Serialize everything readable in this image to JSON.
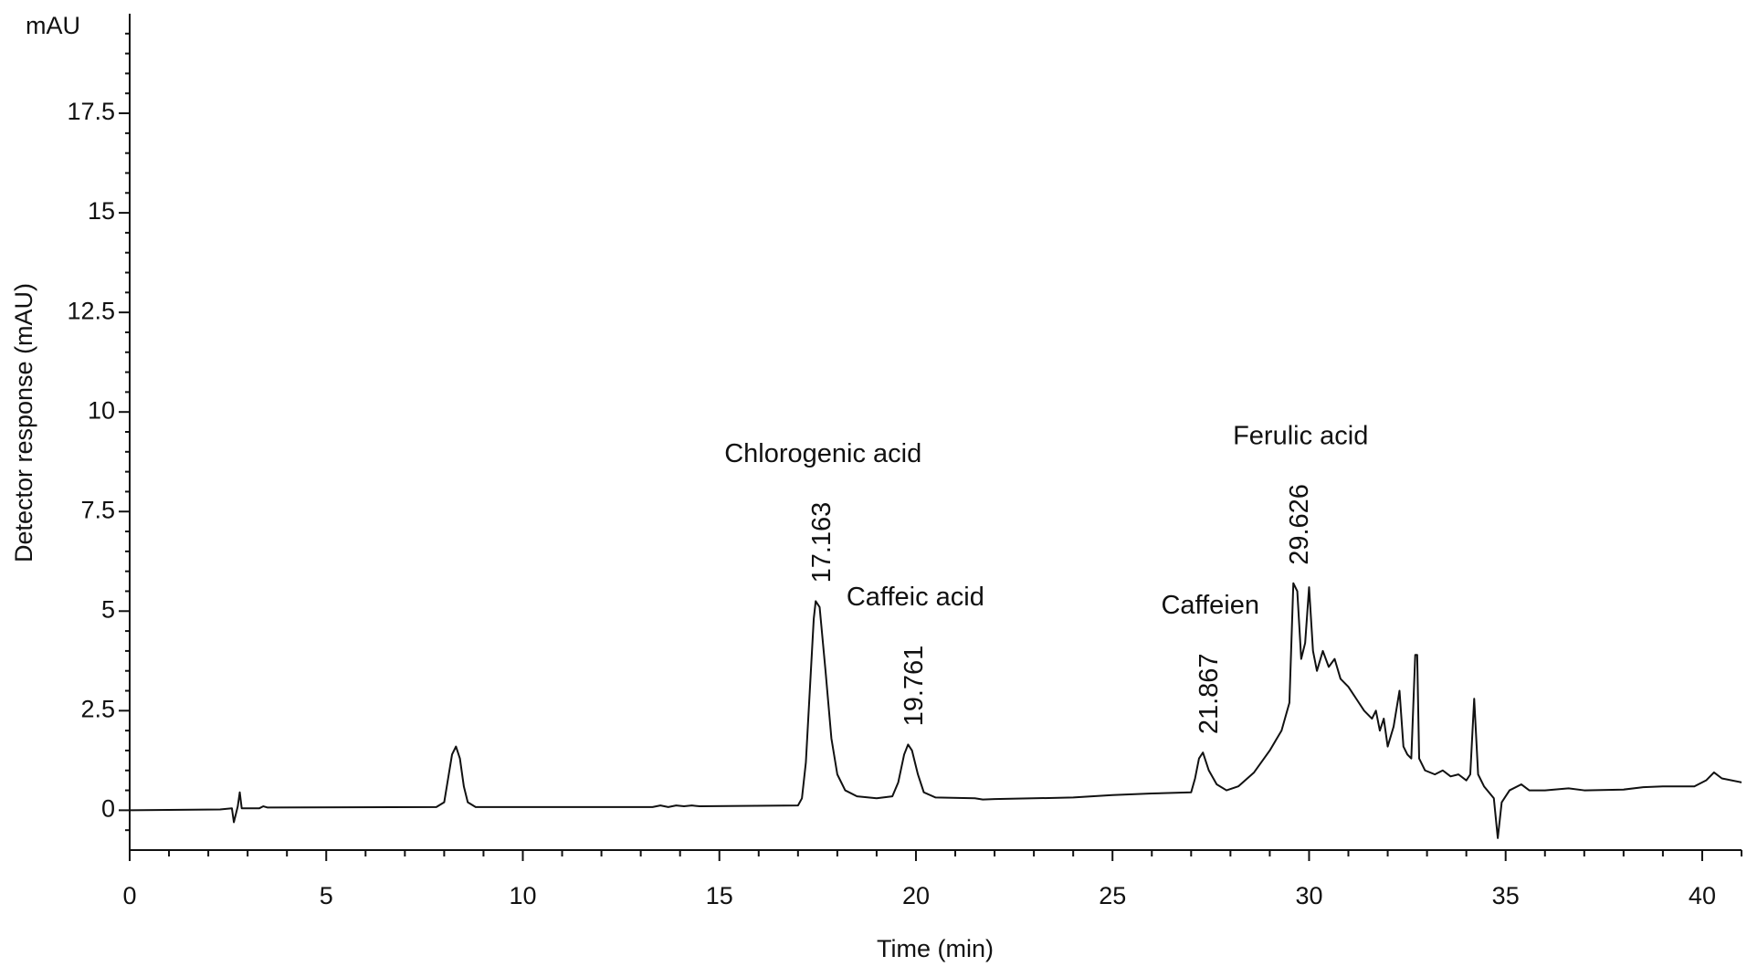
{
  "chart_data": {
    "type": "line",
    "y_unit": "mAU",
    "x_label": "Time (min)",
    "y_label": "Detector response (mAU)",
    "color": "#111111",
    "xlim": [
      0,
      41
    ],
    "ylim": [
      -1,
      20
    ],
    "xticks": [
      0,
      5,
      10,
      15,
      20,
      25,
      30,
      35,
      40
    ],
    "yticks": [
      0,
      2.5,
      5,
      7.5,
      10,
      12.5,
      15,
      17.5
    ],
    "xticks_minor": [
      1,
      2,
      3,
      4,
      6,
      7,
      8,
      9,
      11,
      12,
      13,
      14,
      16,
      17,
      18,
      19,
      21,
      22,
      23,
      24,
      26,
      27,
      28,
      29,
      31,
      32,
      33,
      34,
      36,
      37,
      38,
      39,
      41
    ],
    "yticks_minor": [
      -0.5,
      0.5,
      1,
      1.5,
      2,
      3,
      3.5,
      4,
      4.5,
      5.5,
      6,
      6.5,
      7,
      8,
      8.5,
      9,
      9.5,
      10.5,
      11,
      11.5,
      12,
      13,
      13.5,
      14,
      14.5,
      15.5,
      16,
      16.5,
      17,
      18,
      18.5,
      19,
      19.5
    ],
    "x": [
      0,
      2.3,
      2.6,
      2.65,
      2.75,
      2.8,
      2.85,
      3.0,
      3.3,
      3.4,
      3.5,
      7.8,
      8.0,
      8.1,
      8.2,
      8.3,
      8.4,
      8.5,
      8.6,
      8.8,
      13.3,
      13.5,
      13.7,
      13.9,
      14.1,
      14.3,
      14.5,
      17.0,
      17.1,
      17.2,
      17.3,
      17.4,
      17.45,
      17.55,
      17.7,
      17.85,
      18.0,
      18.2,
      18.5,
      19.0,
      19.4,
      19.55,
      19.7,
      19.8,
      19.9,
      20.05,
      20.2,
      20.5,
      21.5,
      21.7,
      22,
      24,
      25,
      26,
      27,
      27.1,
      27.2,
      27.3,
      27.45,
      27.65,
      27.9,
      28.2,
      28.6,
      29.0,
      29.3,
      29.5,
      29.6,
      29.7,
      29.8,
      29.9,
      30.0,
      30.1,
      30.2,
      30.35,
      30.5,
      30.65,
      30.8,
      31.0,
      31.2,
      31.4,
      31.6,
      31.7,
      31.8,
      31.9,
      32.0,
      32.15,
      32.3,
      32.4,
      32.5,
      32.6,
      32.7,
      32.75,
      32.8,
      32.95,
      33.2,
      33.4,
      33.6,
      33.8,
      34.0,
      34.1,
      34.2,
      34.3,
      34.45,
      34.7,
      34.8,
      34.9,
      35.1,
      35.4,
      35.6,
      36,
      36.6,
      37,
      38,
      38.5,
      39,
      39.8,
      40.1,
      40.3,
      40.5,
      41
    ],
    "values": [
      0,
      0.02,
      0.05,
      -0.3,
      0.1,
      0.45,
      0.05,
      0.05,
      0.05,
      0.1,
      0.07,
      0.08,
      0.2,
      0.8,
      1.4,
      1.6,
      1.3,
      0.6,
      0.2,
      0.08,
      0.08,
      0.12,
      0.08,
      0.12,
      0.1,
      0.12,
      0.1,
      0.12,
      0.3,
      1.2,
      3.0,
      4.8,
      5.25,
      5.1,
      3.5,
      1.8,
      0.9,
      0.5,
      0.35,
      0.3,
      0.35,
      0.7,
      1.4,
      1.65,
      1.5,
      0.9,
      0.45,
      0.32,
      0.3,
      0.27,
      0.28,
      0.32,
      0.38,
      0.42,
      0.45,
      0.8,
      1.3,
      1.45,
      1.0,
      0.65,
      0.5,
      0.6,
      0.95,
      1.5,
      2.0,
      2.7,
      5.7,
      5.5,
      3.8,
      4.2,
      5.6,
      4.0,
      3.5,
      4.0,
      3.6,
      3.8,
      3.3,
      3.1,
      2.8,
      2.5,
      2.3,
      2.5,
      2.0,
      2.3,
      1.6,
      2.1,
      3.0,
      1.6,
      1.4,
      1.3,
      3.9,
      3.9,
      1.3,
      1.0,
      0.9,
      1.0,
      0.85,
      0.9,
      0.75,
      0.9,
      2.8,
      0.9,
      0.6,
      0.3,
      -0.7,
      0.2,
      0.5,
      0.65,
      0.5,
      0.5,
      0.55,
      0.5,
      0.52,
      0.58,
      0.6,
      0.6,
      0.75,
      0.95,
      0.8,
      0.7
    ],
    "annotations": [
      {
        "text": "Chlorogenic acid",
        "retention": 17.163,
        "x": 17.45,
        "y": 5.25
      },
      {
        "text": "Caffeic acid",
        "retention": 19.761,
        "x": 19.8,
        "y": 1.65
      },
      {
        "text": "Caffeien",
        "retention": 21.867,
        "x": 27.3,
        "y": 1.45
      },
      {
        "text": "Ferulic acid",
        "retention": 29.626,
        "x": 29.6,
        "y": 5.7
      }
    ]
  }
}
